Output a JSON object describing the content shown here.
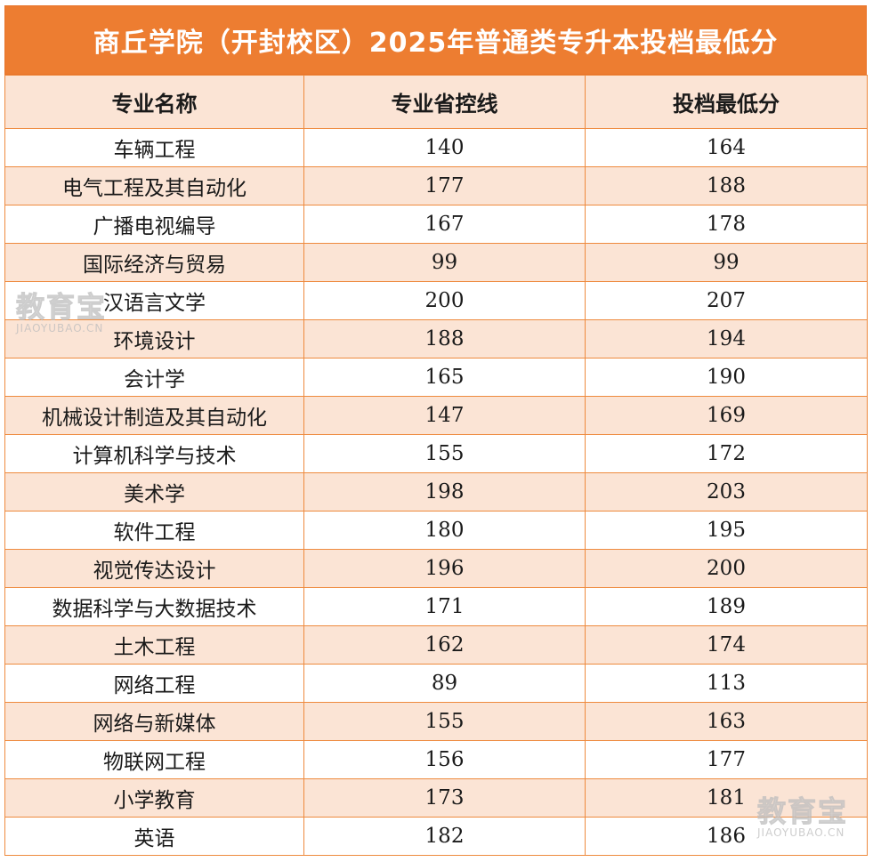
{
  "title": "商丘学院（开封校区）2025年普通类专升本投档最低分",
  "headers": [
    "专业名称",
    "专业省控线",
    "投档最低分"
  ],
  "rows": [
    [
      "车辆工程",
      "140",
      "164"
    ],
    [
      "电气工程及其自动化",
      "177",
      "188"
    ],
    [
      "广播电视编导",
      "167",
      "178"
    ],
    [
      "国际经济与贸易",
      "99",
      "99"
    ],
    [
      "汉语言文学",
      "200",
      "207"
    ],
    [
      "环境设计",
      "188",
      "194"
    ],
    [
      "会计学",
      "165",
      "190"
    ],
    [
      "机械设计制造及其自动化",
      "147",
      "169"
    ],
    [
      "计算机科学与技术",
      "155",
      "172"
    ],
    [
      "美术学",
      "198",
      "203"
    ],
    [
      "软件工程",
      "180",
      "195"
    ],
    [
      "视觉传达设计",
      "196",
      "200"
    ],
    [
      "数据科学与大数据技术",
      "171",
      "189"
    ],
    [
      "土木工程",
      "162",
      "174"
    ],
    [
      "网络工程",
      "89",
      "113"
    ],
    [
      "网络与新媒体",
      "155",
      "163"
    ],
    [
      "物联网工程",
      "156",
      "177"
    ],
    [
      "小学教育",
      "173",
      "181"
    ],
    [
      "英语",
      "182",
      "186"
    ]
  ],
  "watermark": {
    "text": "教育宝",
    "url": "JIAOYUBAO.CN"
  },
  "colors": {
    "title_bg": "#ed7d31",
    "header_bg": "#fbe4d5",
    "stripe_bg": "#fbe4d5",
    "border": "#ee8a3e"
  }
}
